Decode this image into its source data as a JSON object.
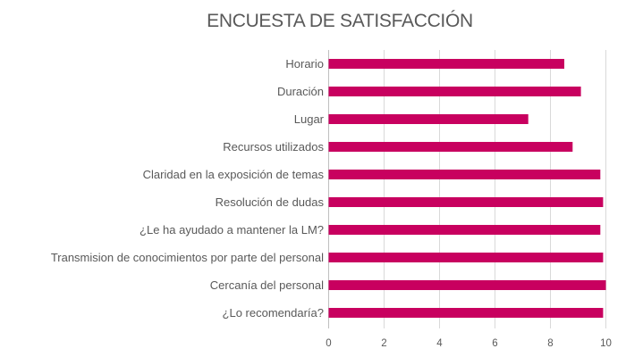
{
  "chart_data": {
    "type": "bar",
    "orientation": "horizontal",
    "title": "ENCUESTA DE SATISFACCIÓN",
    "categories": [
      "Horario",
      "Duración",
      "Lugar",
      "Recursos utilizados",
      "Claridad en la exposición de temas",
      "Resolución de dudas",
      "¿Le ha ayudado a mantener la LM?",
      "Transmision de conocimientos por parte del personal",
      "Cercanía del personal",
      "¿Lo recomendaría?"
    ],
    "values": [
      8.5,
      9.1,
      7.2,
      8.8,
      9.8,
      9.9,
      9.8,
      9.9,
      10,
      9.9
    ],
    "xlim": [
      0,
      10
    ],
    "xticks": [
      "0",
      "2",
      "4",
      "6",
      "8",
      "10"
    ],
    "xlabel": "",
    "ylabel": "",
    "grid": "vertical",
    "legend": "none",
    "bar_color": "#C8005F",
    "grid_color": "#D9D9D9"
  }
}
